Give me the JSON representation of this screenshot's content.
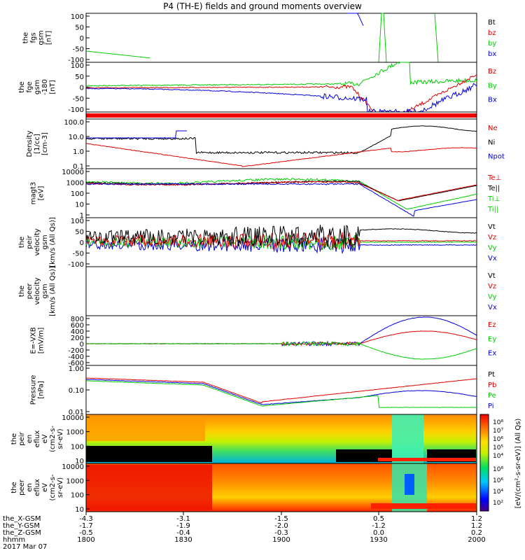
{
  "title": "P4 (TH-E) fields and ground moments overview",
  "footer": {
    "rows": [
      "the_X-GSM",
      "the_Y-GSM",
      "the_Z-GSM",
      "hhmm",
      "2017 Mar 07"
    ],
    "x_ticks": [
      [
        "-4.3",
        "-3.1",
        "-1.5",
        "0.5",
        "1.2"
      ],
      [
        "-1.7",
        "-1.9",
        "-2.0",
        "-1.2",
        "1.2"
      ],
      [
        "-0.5",
        "-0.4",
        "-0.3",
        "0.0",
        "0.2"
      ],
      [
        "1800",
        "1830",
        "1900",
        "1930",
        "2000"
      ]
    ]
  },
  "colorbar": {
    "label": "[eV/(cm²-s-sr-eV)] (All Qs)",
    "ticks_top": [
      "10⁸",
      "10⁷",
      "10⁶",
      "10⁵",
      "10⁴"
    ],
    "ticks_bottom": [
      "10⁸",
      "10⁶",
      "10⁴",
      "10²"
    ]
  },
  "chart_data": [
    {
      "type": "line",
      "ylabel": [
        "the",
        "fgs",
        "gsm",
        "[nT]"
      ],
      "yticks": [
        "100",
        "50",
        "0",
        "-50",
        "-100"
      ],
      "ylim": [
        -100,
        100
      ],
      "series": [
        {
          "name": "Bt",
          "color": "#000000"
        },
        {
          "name": "bz",
          "color": "#dd0000"
        },
        {
          "name": "by",
          "color": "#00cc00"
        },
        {
          "name": "bx",
          "color": "#0000dd"
        }
      ]
    },
    {
      "type": "line",
      "ylabel": [
        "the",
        "fge",
        "gsm",
        "-180",
        "[nT]"
      ],
      "yticks": [
        "100",
        "50",
        "0",
        "-50",
        "-100"
      ],
      "ylim": [
        -130,
        130
      ],
      "series": [
        {
          "name": "Bz",
          "color": "#dd0000"
        },
        {
          "name": "By",
          "color": "#00cc00"
        },
        {
          "name": "Bx",
          "color": "#0000dd"
        }
      ]
    },
    {
      "type": "bar",
      "note": "red status bar",
      "color": "#ee0000"
    },
    {
      "type": "line",
      "scale": "log",
      "ylabel": [
        "Density",
        "[1/cc]",
        "[cm-3]"
      ],
      "yticks": [
        "100.0",
        "10.0",
        "1.0",
        "0.1"
      ],
      "series": [
        {
          "name": "Ne",
          "color": "#dd0000"
        },
        {
          "name": "Ni",
          "color": "#000000"
        },
        {
          "name": "Npot",
          "color": "#0000dd"
        }
      ]
    },
    {
      "type": "line",
      "scale": "log",
      "ylabel": [
        "magt3",
        "[eV]"
      ],
      "yticks": [
        "10000",
        "1000",
        "100",
        "10",
        "1"
      ],
      "series": [
        {
          "name": "Te⊥",
          "color": "#dd0000"
        },
        {
          "name": "Te||",
          "color": "#000000"
        },
        {
          "name": "Ti⊥",
          "color": "#00cc00"
        },
        {
          "name": "Ti||",
          "color": "#00cc00"
        }
      ]
    },
    {
      "type": "line",
      "ylabel": [
        "the",
        "peir",
        "velocity",
        "gsm",
        "[km/s (All Qs)]"
      ],
      "yticks": [
        "100",
        "50",
        "0",
        "-50",
        "-100"
      ],
      "ylim": [
        -100,
        100
      ],
      "series": [
        {
          "name": "Vt",
          "color": "#000000"
        },
        {
          "name": "Vz",
          "color": "#dd0000"
        },
        {
          "name": "Vy",
          "color": "#00cc00"
        },
        {
          "name": "Vx",
          "color": "#0000dd"
        }
      ]
    },
    {
      "type": "line",
      "ylabel": [
        "the",
        "peer",
        "velocity",
        "gsm",
        "[km/s (All Qs)]"
      ],
      "yticks": [],
      "series": [
        {
          "name": "Vt",
          "color": "#000000"
        },
        {
          "name": "Vz",
          "color": "#dd0000"
        },
        {
          "name": "Vy",
          "color": "#00cc00"
        },
        {
          "name": "Vx",
          "color": "#0000dd"
        }
      ]
    },
    {
      "type": "line",
      "ylabel": [
        "E=-VXB",
        "[mV/m]"
      ],
      "yticks": [
        "800",
        "600",
        "400",
        "200",
        "0",
        "-200",
        "-400",
        "-600"
      ],
      "ylim": [
        -700,
        900
      ],
      "series": [
        {
          "name": "Ez",
          "color": "#dd0000"
        },
        {
          "name": "Ey",
          "color": "#00cc00"
        },
        {
          "name": "Ex",
          "color": "#0000dd"
        }
      ]
    },
    {
      "type": "line",
      "scale": "log",
      "ylabel": [
        "Pressure",
        "[nPa]"
      ],
      "yticks": [
        "1.00",
        "0.10",
        "0.01"
      ],
      "series": [
        {
          "name": "Pt",
          "color": "#000000"
        },
        {
          "name": "Pb",
          "color": "#dd0000"
        },
        {
          "name": "Pe",
          "color": "#00cc00"
        },
        {
          "name": "Pi",
          "color": "#0000dd"
        }
      ]
    },
    {
      "type": "heatmap",
      "ylabel": [
        "the",
        "peir",
        "en",
        "eflux",
        "eV",
        "(cm2-s-",
        "sr-eV)"
      ],
      "yticks": [
        "10000",
        "1000",
        "100",
        "10"
      ]
    },
    {
      "type": "heatmap",
      "ylabel": [
        "the",
        "peer",
        "en",
        "eflux",
        "eV",
        "(cm2-s-",
        "sr-eV)"
      ],
      "yticks": [
        "10000",
        "1000",
        "100",
        "10"
      ]
    }
  ]
}
